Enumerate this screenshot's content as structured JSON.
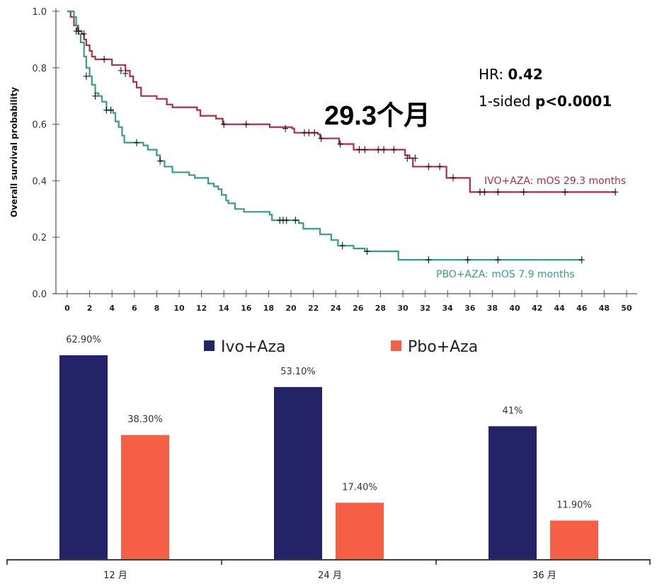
{
  "chart_data": [
    {
      "type": "line",
      "subtype": "kaplan-meier",
      "title": "",
      "xlabel": "",
      "ylabel": "Overall survival probability",
      "xlim": [
        0,
        50
      ],
      "ylim": [
        0.0,
        1.0
      ],
      "x_ticks": [
        "0",
        "2",
        "4",
        "6",
        "8",
        "10",
        "12",
        "14",
        "16",
        "18",
        "20",
        "22",
        "24",
        "26",
        "28",
        "30",
        "32",
        "34",
        "36",
        "38",
        "40",
        "42",
        "44",
        "46",
        "48",
        "50"
      ],
      "y_ticks": [
        "0.0",
        "0.2",
        "0.4",
        "0.6",
        "0.8",
        "1.0"
      ],
      "grid": false,
      "annotation_main": "29.3个月",
      "stats": {
        "hr_label": "HR: ",
        "hr_value": "0.42",
        "p_label": "1-sided ",
        "p_value": "p<0.0001"
      },
      "colors": {
        "ivo": "#a5323f",
        "pbo": "#3a9a8a",
        "censor": "#111111",
        "axis": "#555555"
      },
      "series": [
        {
          "name": "IVO+AZA",
          "label": "IVO+AZA: mOS 29.3 months",
          "steps": [
            [
              0,
              1.0
            ],
            [
              0.3,
              0.98
            ],
            [
              0.6,
              0.95
            ],
            [
              0.9,
              0.93
            ],
            [
              1.3,
              0.92
            ],
            [
              1.5,
              0.9
            ],
            [
              1.7,
              0.88
            ],
            [
              2.0,
              0.86
            ],
            [
              2.2,
              0.84
            ],
            [
              2.5,
              0.83
            ],
            [
              4.0,
              0.81
            ],
            [
              5.2,
              0.79
            ],
            [
              5.6,
              0.77
            ],
            [
              5.9,
              0.75
            ],
            [
              6.2,
              0.73
            ],
            [
              6.6,
              0.7
            ],
            [
              8.0,
              0.69
            ],
            [
              8.9,
              0.67
            ],
            [
              9.4,
              0.66
            ],
            [
              11.6,
              0.65
            ],
            [
              11.9,
              0.63
            ],
            [
              13.3,
              0.62
            ],
            [
              13.9,
              0.6
            ],
            [
              18.1,
              0.59
            ],
            [
              20.1,
              0.585
            ],
            [
              20.3,
              0.57
            ],
            [
              22.4,
              0.565
            ],
            [
              22.6,
              0.55
            ],
            [
              24.3,
              0.53
            ],
            [
              25.6,
              0.51
            ],
            [
              30.2,
              0.49
            ],
            [
              30.6,
              0.48
            ],
            [
              30.9,
              0.45
            ],
            [
              33.9,
              0.41
            ],
            [
              36.0,
              0.36
            ],
            [
              49,
              0.36
            ]
          ],
          "censored": [
            [
              1.0,
              0.93
            ],
            [
              1.5,
              0.92
            ],
            [
              3.3,
              0.83
            ],
            [
              4.8,
              0.79
            ],
            [
              5.2,
              0.78
            ],
            [
              14.0,
              0.6
            ],
            [
              16.0,
              0.6
            ],
            [
              19.5,
              0.585
            ],
            [
              21.2,
              0.57
            ],
            [
              21.6,
              0.57
            ],
            [
              22.1,
              0.57
            ],
            [
              22.7,
              0.55
            ],
            [
              24.4,
              0.53
            ],
            [
              26.1,
              0.51
            ],
            [
              26.6,
              0.51
            ],
            [
              27.8,
              0.51
            ],
            [
              28.3,
              0.51
            ],
            [
              29.2,
              0.51
            ],
            [
              30.4,
              0.48
            ],
            [
              31.1,
              0.48
            ],
            [
              32.3,
              0.45
            ],
            [
              33.3,
              0.45
            ],
            [
              34.5,
              0.41
            ],
            [
              36.9,
              0.36
            ],
            [
              37.3,
              0.36
            ],
            [
              38.5,
              0.36
            ],
            [
              40.8,
              0.36
            ],
            [
              44.5,
              0.36
            ],
            [
              49,
              0.36
            ]
          ]
        },
        {
          "name": "PBO+AZA",
          "label": "PBO+AZA: mOS 7.9 months",
          "steps": [
            [
              0,
              1.0
            ],
            [
              0.6,
              0.98
            ],
            [
              0.8,
              0.95
            ],
            [
              1.0,
              0.92
            ],
            [
              1.2,
              0.89
            ],
            [
              1.5,
              0.84
            ],
            [
              1.7,
              0.8
            ],
            [
              2.0,
              0.77
            ],
            [
              2.2,
              0.74
            ],
            [
              2.5,
              0.71
            ],
            [
              2.8,
              0.7
            ],
            [
              3.1,
              0.68
            ],
            [
              3.5,
              0.65
            ],
            [
              4.1,
              0.64
            ],
            [
              4.3,
              0.61
            ],
            [
              4.6,
              0.59
            ],
            [
              4.9,
              0.56
            ],
            [
              5.1,
              0.535
            ],
            [
              6.8,
              0.525
            ],
            [
              7.2,
              0.51
            ],
            [
              8.0,
              0.49
            ],
            [
              8.3,
              0.47
            ],
            [
              8.7,
              0.45
            ],
            [
              9.4,
              0.43
            ],
            [
              10.9,
              0.42
            ],
            [
              11.4,
              0.41
            ],
            [
              12.6,
              0.39
            ],
            [
              13.1,
              0.38
            ],
            [
              13.5,
              0.37
            ],
            [
              13.8,
              0.35
            ],
            [
              14.2,
              0.33
            ],
            [
              14.4,
              0.32
            ],
            [
              15.0,
              0.3
            ],
            [
              15.8,
              0.29
            ],
            [
              18.1,
              0.28
            ],
            [
              18.3,
              0.26
            ],
            [
              20.7,
              0.25
            ],
            [
              21.1,
              0.23
            ],
            [
              22.6,
              0.21
            ],
            [
              23.6,
              0.19
            ],
            [
              24.2,
              0.17
            ],
            [
              25.6,
              0.16
            ],
            [
              26.6,
              0.15
            ],
            [
              29.6,
              0.12
            ],
            [
              46,
              0.12
            ]
          ],
          "censored": [
            [
              0.8,
              0.93
            ],
            [
              1.7,
              0.77
            ],
            [
              2.5,
              0.7
            ],
            [
              3.5,
              0.65
            ],
            [
              3.9,
              0.65
            ],
            [
              6.2,
              0.535
            ],
            [
              8.3,
              0.47
            ],
            [
              19.0,
              0.26
            ],
            [
              19.3,
              0.26
            ],
            [
              19.6,
              0.26
            ],
            [
              20.4,
              0.26
            ],
            [
              24.6,
              0.17
            ],
            [
              26.8,
              0.15
            ],
            [
              32.3,
              0.12
            ],
            [
              35.8,
              0.12
            ],
            [
              38.5,
              0.12
            ],
            [
              46,
              0.12
            ]
          ]
        }
      ]
    },
    {
      "type": "bar",
      "title": "",
      "xlabel": "",
      "ylabel": "",
      "ylim": [
        0,
        70
      ],
      "categories": [
        "12 月",
        "24 月",
        "36 月"
      ],
      "legend_position": "top",
      "series": [
        {
          "name": "Ivo+Aza",
          "color": "#252368",
          "values": [
            62.9,
            53.1,
            41.0
          ],
          "labels": [
            "62.90%",
            "53.10%",
            "41%"
          ]
        },
        {
          "name": "Pbo+Aza",
          "color": "#f55f45",
          "values": [
            38.3,
            17.4,
            11.9
          ],
          "labels": [
            "38.30%",
            "17.40%",
            "11.90%"
          ]
        }
      ]
    }
  ]
}
